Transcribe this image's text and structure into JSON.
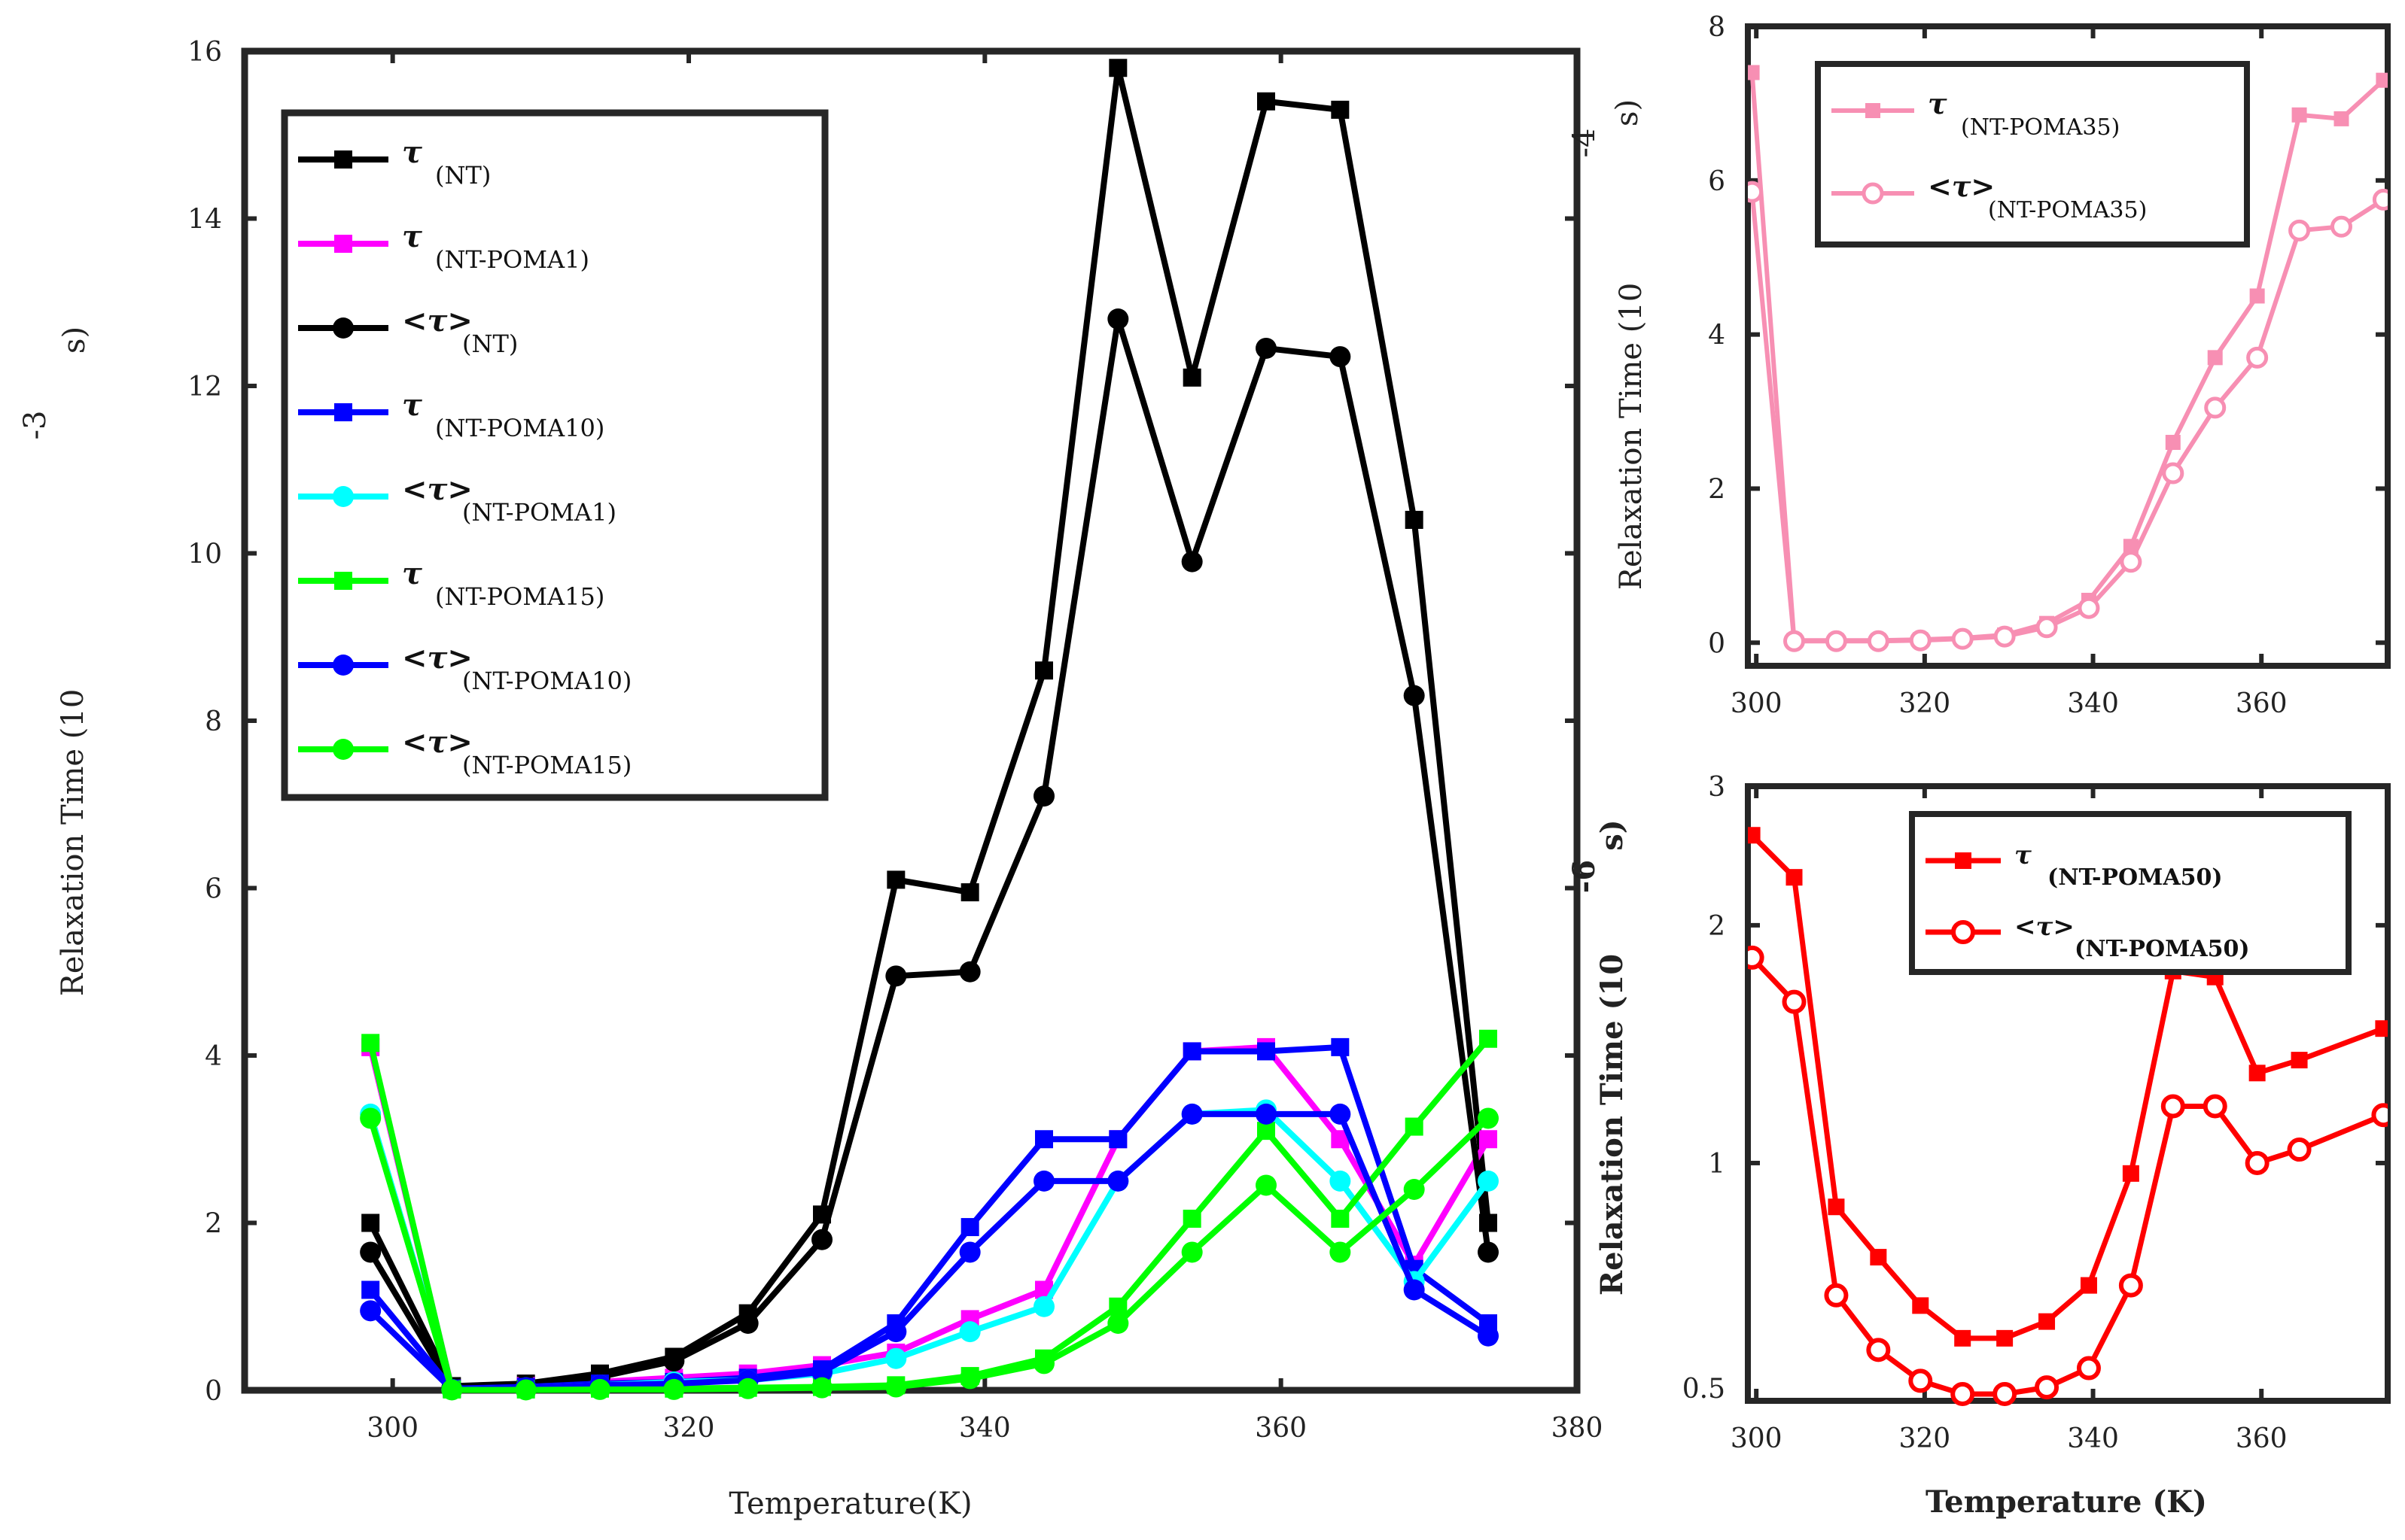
{
  "chart_data": [
    {
      "id": "main",
      "type": "line",
      "title": "",
      "xlabel": "Temperature(K)",
      "ylabel": "Relaxation Time (10",
      "ylabel_exp": "-3",
      "ylabel_unit": "s)",
      "xlim": [
        290,
        380
      ],
      "ylim": [
        0,
        16
      ],
      "xticks": [
        300,
        320,
        340,
        360,
        380
      ],
      "yticks": [
        0,
        2,
        4,
        6,
        8,
        10,
        12,
        14,
        16
      ],
      "legend_position": "upper-left",
      "x": [
        298.5,
        304,
        309,
        314,
        319,
        324,
        329,
        334,
        339,
        344,
        349,
        354,
        359,
        364,
        369,
        374
      ],
      "series": [
        {
          "name": "τ",
          "sub": "(NT)",
          "color": "#000000",
          "marker": "square",
          "values": [
            2.0,
            0.05,
            0.08,
            0.2,
            0.4,
            0.92,
            2.1,
            6.1,
            5.95,
            8.6,
            15.8,
            12.1,
            15.4,
            15.3,
            10.4,
            2.0
          ]
        },
        {
          "name": "τ",
          "sub": "(NT-POMA1)",
          "color": "#ff00ff",
          "marker": "square",
          "values": [
            4.1,
            0.02,
            0.05,
            0.1,
            0.15,
            0.2,
            0.3,
            0.45,
            0.85,
            1.2,
            3.0,
            4.05,
            4.1,
            3.0,
            1.5,
            3.0
          ]
        },
        {
          "name": "<τ>",
          "sub": "(NT)",
          "color": "#000000",
          "marker": "circle",
          "values": [
            1.65,
            0.03,
            0.06,
            0.16,
            0.35,
            0.8,
            1.8,
            4.95,
            5.0,
            7.1,
            12.8,
            9.9,
            12.45,
            12.35,
            8.3,
            1.65
          ]
        },
        {
          "name": "τ",
          "sub": "(NT-POMA10)",
          "color": "#0000ff",
          "marker": "square",
          "values": [
            1.2,
            0.02,
            0.04,
            0.08,
            0.1,
            0.15,
            0.25,
            0.8,
            1.95,
            3.0,
            3.0,
            4.05,
            4.05,
            4.1,
            1.45,
            0.8
          ]
        },
        {
          "name": "<τ>",
          "sub": "(NT-POMA1)",
          "color": "#00ffff",
          "marker": "circle",
          "values": [
            3.3,
            0.01,
            0.03,
            0.06,
            0.1,
            0.12,
            0.2,
            0.38,
            0.7,
            1.0,
            2.5,
            3.3,
            3.35,
            2.5,
            1.3,
            2.5
          ]
        },
        {
          "name": "τ",
          "sub": "(NT-POMA15)",
          "color": "#00ff00",
          "marker": "square",
          "values": [
            4.15,
            0.01,
            0.01,
            0.02,
            0.02,
            0.03,
            0.04,
            0.06,
            0.17,
            0.38,
            1.0,
            2.05,
            3.1,
            2.05,
            3.15,
            4.2
          ]
        },
        {
          "name": "<τ>",
          "sub": "(NT-POMA10)",
          "color": "#0000ff",
          "marker": "circle",
          "values": [
            0.95,
            0.01,
            0.03,
            0.06,
            0.08,
            0.12,
            0.22,
            0.7,
            1.65,
            2.5,
            2.5,
            3.3,
            3.3,
            3.3,
            1.2,
            0.65
          ]
        },
        {
          "name": "<τ>",
          "sub": "(NT-POMA15)",
          "color": "#00ff00",
          "marker": "circle",
          "values": [
            3.25,
            0.005,
            0.005,
            0.01,
            0.01,
            0.02,
            0.03,
            0.04,
            0.14,
            0.32,
            0.8,
            1.65,
            2.45,
            1.65,
            2.4,
            3.25
          ]
        }
      ]
    },
    {
      "id": "top-right",
      "type": "line",
      "title": "",
      "xlabel": "",
      "ylabel": "Relaxation Time (10",
      "ylabel_exp": "-4",
      "ylabel_unit": "s)",
      "xlim": [
        299,
        375
      ],
      "ylim": [
        -0.3,
        8
      ],
      "xticks": [
        300,
        320,
        340,
        360
      ],
      "yticks": [
        0,
        2,
        4,
        6,
        8
      ],
      "legend_position": "upper-left",
      "x": [
        299.5,
        304.5,
        309.5,
        314.5,
        319.5,
        324.5,
        329.5,
        334.5,
        339.5,
        344.5,
        349.5,
        354.5,
        359.5,
        364.5,
        369.5,
        374.5
      ],
      "series": [
        {
          "name": "τ",
          "sub": "(NT-POMA35)",
          "color": "#f78fb3",
          "marker": "square",
          "values": [
            7.4,
            0.03,
            0.03,
            0.03,
            0.04,
            0.06,
            0.1,
            0.25,
            0.55,
            1.25,
            2.6,
            3.7,
            4.5,
            6.85,
            6.8,
            7.3
          ]
        },
        {
          "name": "<τ>",
          "sub": "(NT-POMA35)",
          "color": "#f78fb3",
          "marker": "open-circle",
          "values": [
            5.85,
            0.02,
            0.02,
            0.02,
            0.03,
            0.05,
            0.08,
            0.2,
            0.45,
            1.05,
            2.2,
            3.05,
            3.7,
            5.35,
            5.4,
            5.75
          ]
        }
      ]
    },
    {
      "id": "bottom-right",
      "type": "line",
      "title": "",
      "xlabel": "Temperature (K)",
      "ylabel": "Relaxation Time (10",
      "ylabel_exp": "-6",
      "ylabel_unit": "s)",
      "xlim": [
        299,
        375
      ],
      "ylim": [
        0.5,
        3
      ],
      "xticks": [
        300,
        320,
        340,
        360
      ],
      "yticks": [
        0.5,
        1,
        2,
        3
      ],
      "ytick_labels": [
        "0.5",
        "1",
        "2",
        "3"
      ],
      "yscale": "log",
      "legend_position": "upper-right",
      "x": [
        299.5,
        304.5,
        309.5,
        314.5,
        319.5,
        324.5,
        329.5,
        334.5,
        339.5,
        344.5,
        349.5,
        354.5,
        359.5,
        364.5,
        374.5
      ],
      "series": [
        {
          "name": "τ",
          "sub": "(NT-POMA50)",
          "color": "#ff0000",
          "marker": "square",
          "values": [
            2.6,
            2.3,
            0.88,
            0.76,
            0.66,
            0.6,
            0.6,
            0.63,
            0.7,
            0.97,
            1.75,
            1.72,
            1.3,
            1.35,
            1.48
          ]
        },
        {
          "name": "<τ>",
          "sub": "(NT-POMA50)",
          "color": "#ff0000",
          "marker": "open-circle",
          "values": [
            1.82,
            1.6,
            0.68,
            0.58,
            0.53,
            0.51,
            0.51,
            0.52,
            0.55,
            0.7,
            1.18,
            1.18,
            1.0,
            1.04,
            1.15
          ]
        }
      ]
    }
  ]
}
